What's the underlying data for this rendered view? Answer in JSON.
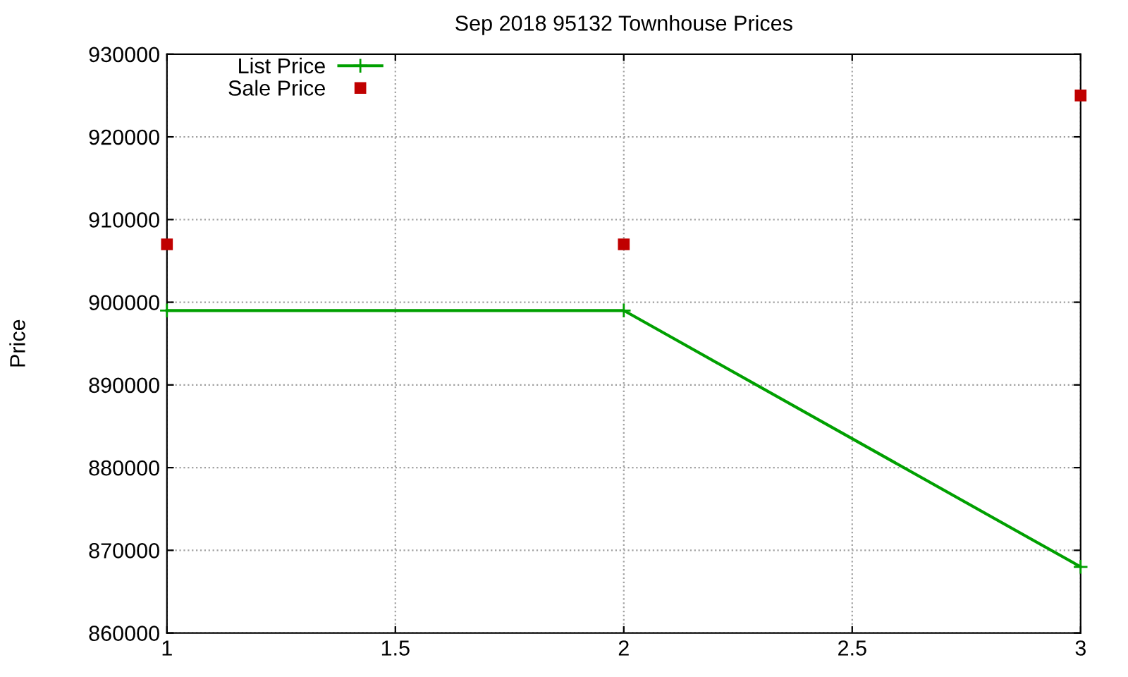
{
  "chart_data": {
    "type": "line",
    "title": "Sep 2018 95132 Townhouse Prices",
    "ylabel": "Price",
    "x": [
      1,
      2,
      3
    ],
    "series": [
      {
        "name": "List Price",
        "color": "#00a000",
        "marker": "cross",
        "values": [
          899000,
          899000,
          868000
        ]
      },
      {
        "name": "Sale Price",
        "type": "scatter",
        "color": "#c00000",
        "marker": "square",
        "values": [
          907000,
          907000,
          925000
        ]
      }
    ],
    "xlim": [
      1,
      3
    ],
    "xticks": [
      1,
      1.5,
      2,
      2.5,
      3
    ],
    "ylim": [
      860000,
      930000
    ],
    "yticks": [
      860000,
      870000,
      880000,
      890000,
      900000,
      910000,
      920000,
      930000
    ],
    "grid": true,
    "legend": "top left"
  }
}
